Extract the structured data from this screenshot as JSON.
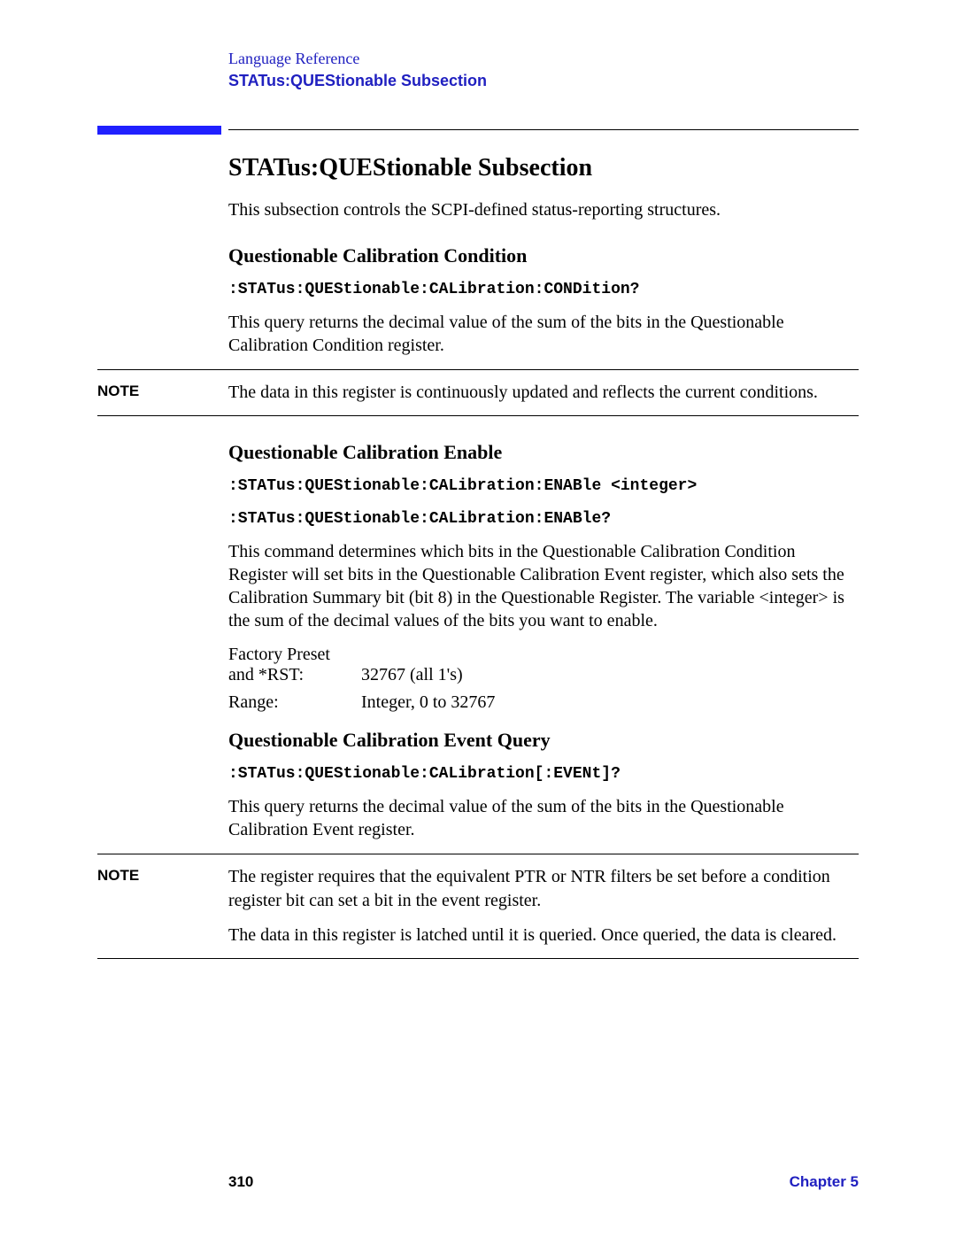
{
  "header": {
    "breadcrumb": "Language Reference",
    "subsection": "STATus:QUEStionable Subsection"
  },
  "colors": {
    "link_blue": "#2020c0",
    "bar_blue": "#2020ff",
    "text": "#000000",
    "background": "#ffffff"
  },
  "section": {
    "title": "STATus:QUEStionable Subsection",
    "intro": "This subsection controls the SCPI-defined status-reporting structures."
  },
  "sub1": {
    "heading": "Questionable Calibration Condition",
    "command": ":STATus:QUEStionable:CALibration:CONDition?",
    "body": "This query returns the decimal value of the sum of the bits in the Questionable Calibration Condition register."
  },
  "note1": {
    "label": "NOTE",
    "text": "The data in this register is continuously updated and reflects the current conditions."
  },
  "sub2": {
    "heading": "Questionable Calibration Enable",
    "command1": ":STATus:QUEStionable:CALibration:ENABle <integer>",
    "command2": ":STATus:QUEStionable:CALibration:ENABle?",
    "body": "This command determines which bits in the Questionable Calibration Condition Register will set bits in the Questionable Calibration Event register, which also sets the Calibration Summary bit (bit 8) in the Questionable Register. The variable <integer> is the sum of the decimal values of the bits you want to enable.",
    "params": {
      "preset_label1": "Factory Preset",
      "preset_label2": "and *RST:",
      "preset_value": "32767 (all 1's)",
      "range_label": "Range:",
      "range_value": "Integer, 0 to 32767"
    }
  },
  "sub3": {
    "heading": "Questionable Calibration Event Query",
    "command": ":STATus:QUEStionable:CALibration[:EVENt]?",
    "body": "This query returns the decimal value of the sum of the bits in the Questionable Calibration Event register."
  },
  "note2": {
    "label": "NOTE",
    "p1": "The register requires that the equivalent PTR or NTR filters be set before a condition register bit can set a bit in the event register.",
    "p2": "The data in this register is latched until it is queried. Once queried, the data is cleared."
  },
  "footer": {
    "page": "310",
    "chapter": "Chapter 5"
  }
}
